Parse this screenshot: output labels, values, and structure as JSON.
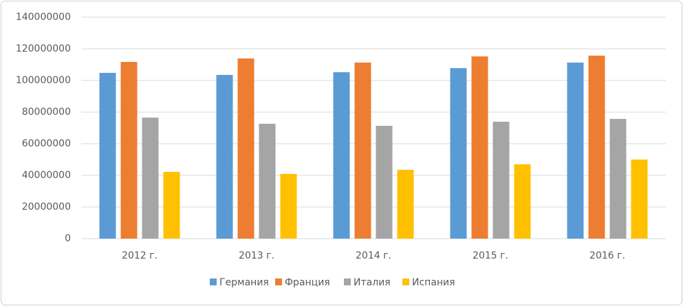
{
  "chart_data": {
    "type": "bar",
    "categories": [
      "2012 г.",
      "2013 г.",
      "2014 г.",
      "2015 г.",
      "2016 г."
    ],
    "series": [
      {
        "name": "Германия",
        "color": "#5b9bd5",
        "values": [
          104800000,
          103500000,
          105200000,
          107800000,
          111300000
        ]
      },
      {
        "name": "Франция",
        "color": "#ed7d31",
        "values": [
          111700000,
          113900000,
          111300000,
          115200000,
          115700000
        ]
      },
      {
        "name": "Италия",
        "color": "#a5a5a5",
        "values": [
          76500000,
          72600000,
          71300000,
          73900000,
          75700000
        ]
      },
      {
        "name": "Испания",
        "color": "#ffc000",
        "values": [
          42200000,
          40900000,
          43500000,
          47000000,
          50000000
        ]
      }
    ],
    "ylim": [
      0,
      140000000
    ],
    "yticks": [
      0,
      20000000,
      40000000,
      60000000,
      80000000,
      100000000,
      120000000,
      140000000
    ],
    "grid": true,
    "legend": "bottom"
  }
}
